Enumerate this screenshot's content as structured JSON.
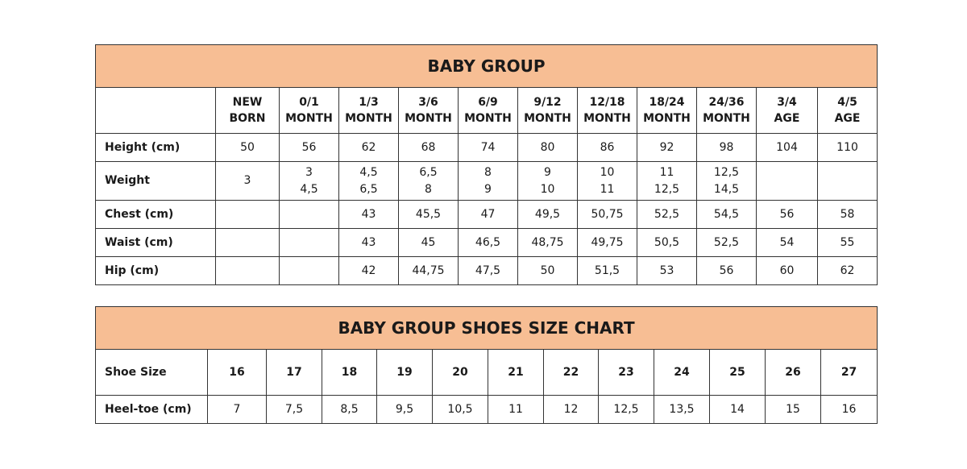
{
  "size_chart": {
    "title": "BABY GROUP",
    "columns": [
      [
        "NEW",
        "BORN"
      ],
      [
        "0/1",
        "MONTH"
      ],
      [
        "1/3",
        "MONTH"
      ],
      [
        "3/6",
        "MONTH"
      ],
      [
        "6/9",
        "MONTH"
      ],
      [
        "9/12",
        "MONTH"
      ],
      [
        "12/18",
        "MONTH"
      ],
      [
        "18/24",
        "MONTH"
      ],
      [
        "24/36",
        "MONTH"
      ],
      [
        "3/4",
        "AGE"
      ],
      [
        "4/5",
        "AGE"
      ]
    ],
    "rows": [
      {
        "label": "Height (cm)",
        "values": [
          [
            "50"
          ],
          [
            "56"
          ],
          [
            "62"
          ],
          [
            "68"
          ],
          [
            "74"
          ],
          [
            "80"
          ],
          [
            "86"
          ],
          [
            "92"
          ],
          [
            "98"
          ],
          [
            "104"
          ],
          [
            "110"
          ]
        ]
      },
      {
        "label": "Weight",
        "values": [
          [
            "3"
          ],
          [
            "3",
            "4,5"
          ],
          [
            "4,5",
            "6,5"
          ],
          [
            "6,5",
            "8"
          ],
          [
            "8",
            "9"
          ],
          [
            "9",
            "10"
          ],
          [
            "10",
            "11"
          ],
          [
            "11",
            "12,5"
          ],
          [
            "12,5",
            "14,5"
          ],
          [
            ""
          ],
          [
            ""
          ]
        ]
      },
      {
        "label": "Chest (cm)",
        "values": [
          [
            ""
          ],
          [
            ""
          ],
          [
            "43"
          ],
          [
            "45,5"
          ],
          [
            "47"
          ],
          [
            "49,5"
          ],
          [
            "50,75"
          ],
          [
            "52,5"
          ],
          [
            "54,5"
          ],
          [
            "56"
          ],
          [
            "58"
          ]
        ]
      },
      {
        "label": "Waist (cm)",
        "values": [
          [
            ""
          ],
          [
            ""
          ],
          [
            "43"
          ],
          [
            "45"
          ],
          [
            "46,5"
          ],
          [
            "48,75"
          ],
          [
            "49,75"
          ],
          [
            "50,5"
          ],
          [
            "52,5"
          ],
          [
            "54"
          ],
          [
            "55"
          ]
        ]
      },
      {
        "label": "Hip (cm)",
        "values": [
          [
            ""
          ],
          [
            ""
          ],
          [
            "42"
          ],
          [
            "44,75"
          ],
          [
            "47,5"
          ],
          [
            "50"
          ],
          [
            "51,5"
          ],
          [
            "53"
          ],
          [
            "56"
          ],
          [
            "60"
          ],
          [
            "62"
          ]
        ]
      }
    ]
  },
  "shoes_chart": {
    "title": "BABY GROUP SHOES SIZE CHART",
    "size_label": "Shoe Size",
    "sizes": [
      "16",
      "17",
      "18",
      "19",
      "20",
      "21",
      "22",
      "23",
      "24",
      "25",
      "26",
      "27"
    ],
    "heel_label": "Heel-toe (cm)",
    "heel_toe": [
      "7",
      "7,5",
      "8,5",
      "9,5",
      "10,5",
      "11",
      "12",
      "12,5",
      "13,5",
      "14",
      "15",
      "16"
    ]
  },
  "colors": {
    "header_fill": "#f7be94",
    "border": "#333333"
  }
}
